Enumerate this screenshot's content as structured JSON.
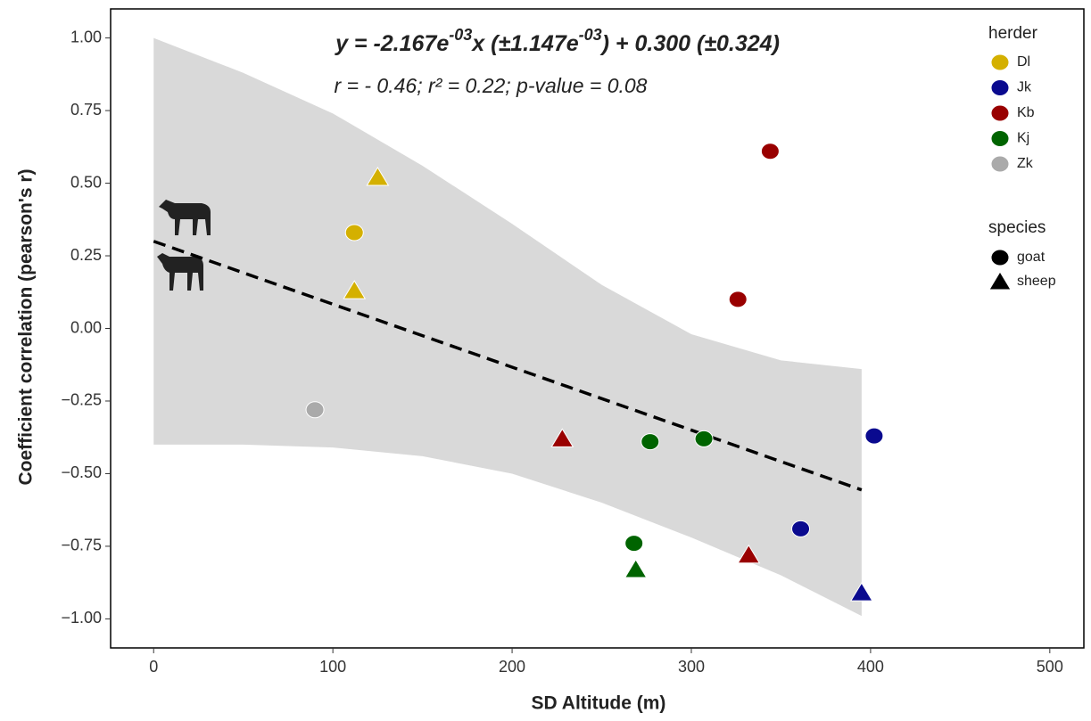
{
  "chart_data": {
    "type": "scatter",
    "equation_parts": [
      "y = -2.167e",
      "-03",
      "x (±1.147e",
      "-03",
      ") + 0.300 (±0.324)"
    ],
    "stats": "r = - 0.46; r² = 0.22; p-value = 0.08",
    "x_label": "SD Altitude (m)",
    "y_label": "Coefficient correlation (pearson's r)",
    "xlim": [
      -24,
      519
    ],
    "ylim": [
      -1.1,
      1.1
    ],
    "xticks": [
      0,
      100,
      200,
      300,
      400,
      500
    ],
    "yticks": [
      {
        "value": 1,
        "label": "1.00"
      },
      {
        "value": 0.75,
        "label": "0.75"
      },
      {
        "value": 0.5,
        "label": "0.50"
      },
      {
        "value": 0.25,
        "label": "0.25"
      },
      {
        "value": 0,
        "label": "0.00"
      },
      {
        "value": -0.25,
        "label": "−0.25"
      },
      {
        "value": -0.5,
        "label": "−0.50"
      },
      {
        "value": -0.75,
        "label": "−0.75"
      },
      {
        "value": -1,
        "label": "−1.00"
      }
    ],
    "fit": {
      "slope": -0.002167,
      "intercept": 0.3,
      "x": [
        0,
        395
      ]
    },
    "band": {
      "color": "#d9d9d9",
      "x": [
        0,
        50,
        100,
        150,
        200,
        250,
        300,
        350,
        395
      ],
      "upper": [
        1.0,
        0.88,
        0.74,
        0.56,
        0.36,
        0.15,
        -0.02,
        -0.11,
        -0.14
      ],
      "lower": [
        -0.4,
        -0.4,
        -0.41,
        -0.44,
        -0.5,
        -0.6,
        -0.72,
        -0.85,
        -0.99
      ]
    },
    "legend_title": "herder",
    "shape_legend": {
      "title": "species",
      "items": [
        "goat",
        "sheep"
      ]
    },
    "series": [
      {
        "name": "Dl",
        "color": "#d4b000",
        "x": [
          112,
          125,
          112
        ],
        "values": [
          0.33,
          0.52,
          0.13
        ],
        "species": [
          "goat",
          "sheep",
          "sheep"
        ]
      },
      {
        "name": "Jk",
        "color": "#0a0a8f",
        "x": [
          402,
          361,
          395
        ],
        "values": [
          -0.37,
          -0.69,
          -0.91
        ],
        "species": [
          "goat",
          "goat",
          "sheep"
        ]
      },
      {
        "name": "Kb",
        "color": "#990000",
        "x": [
          344,
          326,
          228,
          332
        ],
        "values": [
          0.61,
          0.1,
          -0.38,
          -0.78
        ],
        "species": [
          "goat",
          "goat",
          "sheep",
          "sheep"
        ]
      },
      {
        "name": "Kj",
        "color": "#006400",
        "x": [
          277,
          307,
          268,
          269
        ],
        "values": [
          -0.39,
          -0.38,
          -0.74,
          -0.83
        ],
        "species": [
          "goat",
          "goat",
          "goat",
          "sheep"
        ]
      },
      {
        "name": "Zk",
        "color": "#aaaaaa",
        "x": [
          90
        ],
        "values": [
          -0.28
        ],
        "species": [
          "goat"
        ]
      }
    ]
  }
}
